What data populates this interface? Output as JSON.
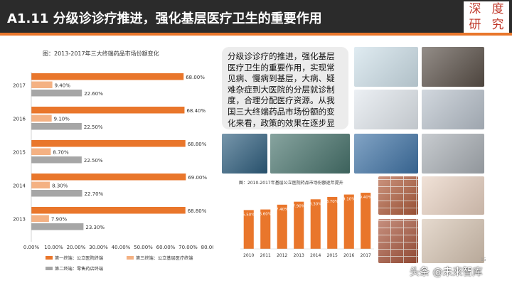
{
  "header": {
    "title": "A1.11  分级诊诊疗推进，强化基层医疗卫生的重要作用",
    "logo_chars": [
      "深",
      "度",
      "研",
      "究"
    ]
  },
  "description": "分级诊诊疗的推进，强化基层医疗卫生的重要作用，实现常见病、慢病到基层，大病、疑难杂症到大医院的分层就诊制度，合理分配医疗资源。从我国三大终端药品市场份额的变化来看，政策的效果在逐步显现",
  "photos": [
    {
      "icon": "stethoscope-photo"
    },
    {
      "icon": "medical-equipment-photo"
    },
    {
      "icon": "dental-chair-photo"
    },
    {
      "icon": "doctor-hands-photo"
    },
    {
      "icon": "xray-review-photo"
    },
    {
      "icon": "surgery-team-photo"
    },
    {
      "icon": "microscope-photo"
    },
    {
      "icon": "lab-work-photo"
    },
    {
      "icon": "brick-wall-photo"
    },
    {
      "icon": "hands-care-photo"
    },
    {
      "icon": "brick-wall-photo"
    },
    {
      "icon": "patient-care-photo"
    }
  ],
  "page_number": "15",
  "watermark": "头条 @未来智库",
  "chart_data": [
    {
      "type": "bar",
      "orientation": "horizontal",
      "title": "图：2013-2017年三大终端药品市场份额变化",
      "categories": [
        "2017",
        "2016",
        "2015",
        "2014",
        "2013"
      ],
      "series": [
        {
          "name": "第一终端：公立医院终端",
          "values": [
            68.0,
            68.4,
            68.8,
            69.0,
            68.8
          ],
          "labels": [
            "68.00%",
            "68.40%",
            "68.80%",
            "69.00%",
            "68.80%"
          ],
          "color": "#e9762b"
        },
        {
          "name": "第三终端：公立基层医疗终端",
          "values": [
            9.4,
            9.1,
            8.7,
            8.3,
            7.9
          ],
          "labels": [
            "9.40%",
            "9.10%",
            "8.70%",
            "8.30%",
            "7.90%"
          ],
          "color": "#f4b183"
        },
        {
          "name": "第二终端：零售药店终端",
          "values": [
            22.6,
            22.5,
            22.5,
            22.7,
            23.3
          ],
          "labels": [
            "22.60%",
            "22.50%",
            "22.50%",
            "22.70%",
            "23.30%"
          ],
          "color": "#a6a6a6"
        }
      ],
      "x_ticks": [
        "0.00%",
        "10.00%",
        "20.00%",
        "30.00%",
        "40.00%",
        "50.00%",
        "60.00%",
        "70.00%",
        "80.00%"
      ],
      "xlim": [
        0,
        80
      ],
      "legend_position": "bottom"
    },
    {
      "type": "bar",
      "title": "图：2010-2017年基层公立医院药品市场份额逐年提升",
      "categories": [
        "2010",
        "2011",
        "2012",
        "2013",
        "2014",
        "2015",
        "2016",
        "2017"
      ],
      "values": [
        6.5,
        6.6,
        7.4,
        7.9,
        8.3,
        8.7,
        9.1,
        9.4
      ],
      "labels": [
        "6.50%",
        "6.60%",
        "7.40%",
        "7.90%",
        "8.30%",
        "8.70%",
        "9.10%",
        "9.40%"
      ],
      "color": "#e9762b",
      "ylim": [
        0,
        10
      ]
    }
  ]
}
